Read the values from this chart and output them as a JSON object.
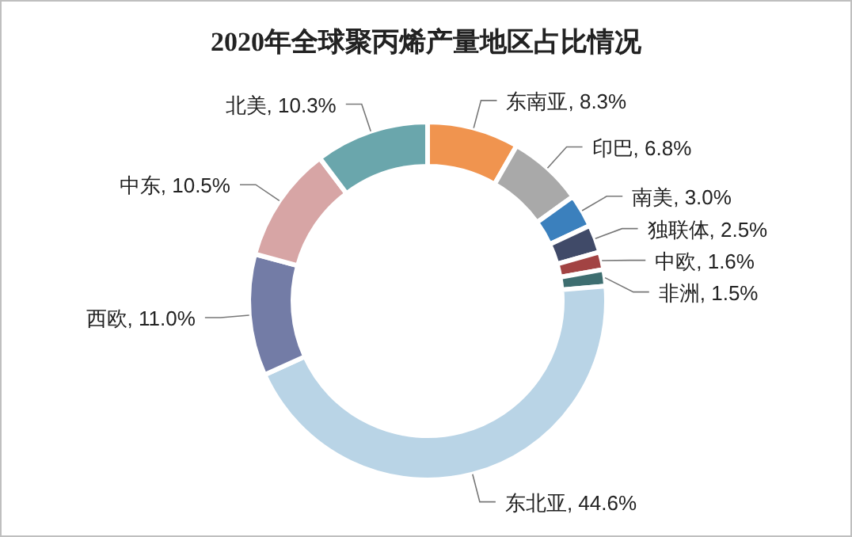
{
  "chart_data": {
    "type": "donut",
    "title": "2020年全球聚丙烯产量地区占比情况",
    "categories": [
      "东南亚",
      "印巴",
      "南美",
      "独联体",
      "中欧",
      "非洲",
      "东北亚",
      "西欧",
      "中东",
      "北美"
    ],
    "values": [
      8.3,
      6.8,
      3.0,
      2.5,
      1.6,
      1.5,
      44.6,
      11.0,
      10.5,
      10.3
    ],
    "value_labels": [
      "8.3%",
      "6.8%",
      "3.0%",
      "2.5%",
      "1.6%",
      "1.5%",
      "44.6%",
      "11.0%",
      "10.5%",
      "10.3%"
    ],
    "colors": [
      "#f0944f",
      "#a9a9a9",
      "#3b80bd",
      "#404a68",
      "#a24343",
      "#3e6e70",
      "#b9d4e6",
      "#737ca6",
      "#d7a5a5",
      "#6aa6ac"
    ]
  }
}
